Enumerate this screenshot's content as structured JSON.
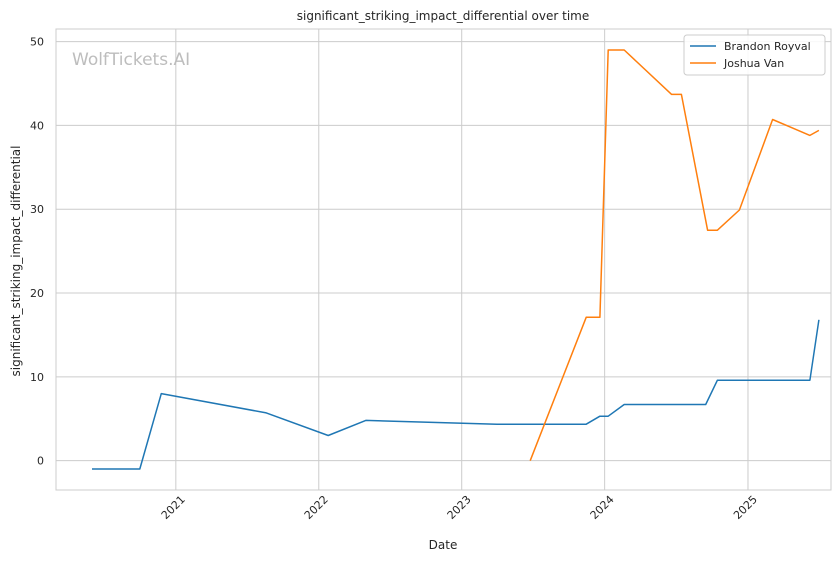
{
  "chart_data": {
    "type": "line",
    "title": "significant_striking_impact_differential over time",
    "xlabel": "Date",
    "ylabel": "significant_striking_impact_differential",
    "watermark": "WolfTickets.AI",
    "xlim": [
      "2020-03-01",
      "2025-08-01"
    ],
    "ylim": [
      -3.5,
      51.5
    ],
    "x_ticks": [
      "2021",
      "2022",
      "2023",
      "2024",
      "2025"
    ],
    "y_ticks": [
      0,
      10,
      20,
      30,
      40,
      50
    ],
    "grid": true,
    "legend_position": "top-right",
    "series": [
      {
        "name": "Brandon Royval",
        "color": "#1f77b4",
        "points": [
          {
            "x": "2020-06-01",
            "y": -1
          },
          {
            "x": "2020-10-01",
            "y": -1
          },
          {
            "x": "2020-11-25",
            "y": 8.0
          },
          {
            "x": "2021-08-20",
            "y": 5.7
          },
          {
            "x": "2022-01-25",
            "y": 3.0
          },
          {
            "x": "2022-05-01",
            "y": 4.8
          },
          {
            "x": "2023-04-01",
            "y": 4.35
          },
          {
            "x": "2023-11-15",
            "y": 4.35
          },
          {
            "x": "2023-12-20",
            "y": 5.3
          },
          {
            "x": "2024-01-10",
            "y": 5.3
          },
          {
            "x": "2024-02-20",
            "y": 6.7
          },
          {
            "x": "2024-09-15",
            "y": 6.7
          },
          {
            "x": "2024-10-15",
            "y": 9.6
          },
          {
            "x": "2025-06-08",
            "y": 9.6
          },
          {
            "x": "2025-07-01",
            "y": 16.8
          }
        ]
      },
      {
        "name": "Joshua Van",
        "color": "#ff7f0e",
        "points": [
          {
            "x": "2023-06-25",
            "y": 0
          },
          {
            "x": "2023-11-15",
            "y": 17.1
          },
          {
            "x": "2023-12-20",
            "y": 17.1
          },
          {
            "x": "2024-01-10",
            "y": 49.0
          },
          {
            "x": "2024-02-20",
            "y": 49.0
          },
          {
            "x": "2024-06-20",
            "y": 43.7
          },
          {
            "x": "2024-07-15",
            "y": 43.7
          },
          {
            "x": "2024-09-20",
            "y": 27.5
          },
          {
            "x": "2024-10-15",
            "y": 27.5
          },
          {
            "x": "2024-12-10",
            "y": 29.9
          },
          {
            "x": "2025-03-05",
            "y": 40.7
          },
          {
            "x": "2025-06-08",
            "y": 38.8
          },
          {
            "x": "2025-07-01",
            "y": 39.4
          }
        ]
      }
    ]
  }
}
